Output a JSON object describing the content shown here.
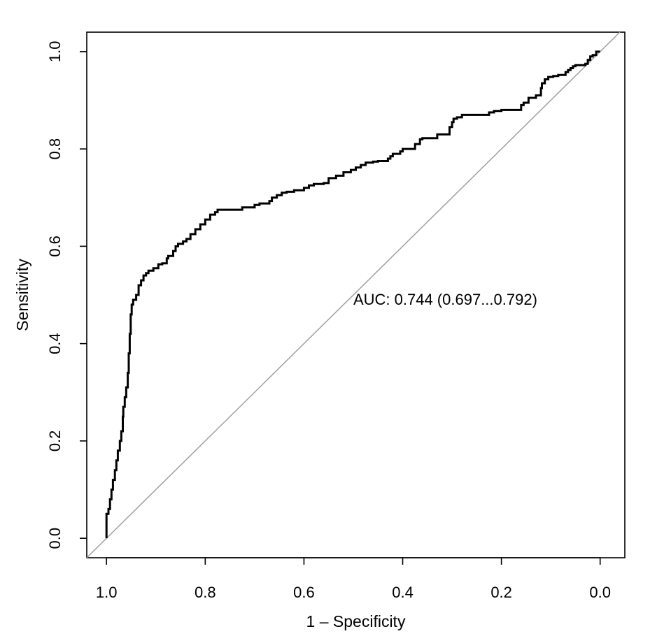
{
  "chart_data": {
    "type": "line",
    "title": "",
    "xlabel": "1 – Specificity",
    "ylabel": "Sensitivity",
    "x_axis": {
      "reversed": true,
      "ticks": [
        1.0,
        0.8,
        0.6,
        0.4,
        0.2,
        0.0
      ],
      "tick_labels": [
        "1.0",
        "0.8",
        "0.6",
        "0.4",
        "0.2",
        "0.0"
      ],
      "range": [
        1.04,
        -0.05
      ]
    },
    "y_axis": {
      "ticks": [
        0.0,
        0.2,
        0.4,
        0.6,
        0.8,
        1.0
      ],
      "tick_labels": [
        "0.0",
        "0.2",
        "0.4",
        "0.6",
        "0.8",
        "1.0"
      ],
      "range": [
        -0.04,
        1.04
      ]
    },
    "grid": false,
    "legend": "none",
    "annotation": {
      "text": "AUC: 0.744 (0.697...0.792)",
      "x": 0.5,
      "y": 0.48
    },
    "diagonal": {
      "from": [
        1.0,
        0.0
      ],
      "to": [
        0.0,
        1.0
      ],
      "color": "#a0a0a0"
    },
    "series": [
      {
        "color": "#000000",
        "points": [
          [
            1.0,
            0.0
          ],
          [
            1.0,
            0.04
          ],
          [
            0.996,
            0.05
          ],
          [
            0.993,
            0.06
          ],
          [
            0.99,
            0.08
          ],
          [
            0.987,
            0.1
          ],
          [
            0.983,
            0.12
          ],
          [
            0.98,
            0.14
          ],
          [
            0.977,
            0.16
          ],
          [
            0.973,
            0.18
          ],
          [
            0.97,
            0.2
          ],
          [
            0.967,
            0.22
          ],
          [
            0.966,
            0.25
          ],
          [
            0.963,
            0.27
          ],
          [
            0.96,
            0.29
          ],
          [
            0.957,
            0.31
          ],
          [
            0.955,
            0.34
          ],
          [
            0.953,
            0.38
          ],
          [
            0.951,
            0.42
          ],
          [
            0.949,
            0.46
          ],
          [
            0.946,
            0.48
          ],
          [
            0.94,
            0.49
          ],
          [
            0.935,
            0.5
          ],
          [
            0.93,
            0.52
          ],
          [
            0.925,
            0.53
          ],
          [
            0.92,
            0.54
          ],
          [
            0.915,
            0.545
          ],
          [
            0.905,
            0.55
          ],
          [
            0.895,
            0.555
          ],
          [
            0.887,
            0.563
          ],
          [
            0.878,
            0.565
          ],
          [
            0.875,
            0.575
          ],
          [
            0.865,
            0.58
          ],
          [
            0.86,
            0.59
          ],
          [
            0.855,
            0.6
          ],
          [
            0.845,
            0.605
          ],
          [
            0.838,
            0.61
          ],
          [
            0.83,
            0.615
          ],
          [
            0.82,
            0.625
          ],
          [
            0.81,
            0.635
          ],
          [
            0.8,
            0.645
          ],
          [
            0.79,
            0.655
          ],
          [
            0.78,
            0.665
          ],
          [
            0.775,
            0.67
          ],
          [
            0.76,
            0.675
          ],
          [
            0.725,
            0.675
          ],
          [
            0.715,
            0.68
          ],
          [
            0.7,
            0.68
          ],
          [
            0.69,
            0.685
          ],
          [
            0.67,
            0.688
          ],
          [
            0.665,
            0.693
          ],
          [
            0.655,
            0.7
          ],
          [
            0.645,
            0.705
          ],
          [
            0.635,
            0.71
          ],
          [
            0.62,
            0.712
          ],
          [
            0.6,
            0.715
          ],
          [
            0.59,
            0.72
          ],
          [
            0.58,
            0.725
          ],
          [
            0.56,
            0.728
          ],
          [
            0.55,
            0.73
          ],
          [
            0.535,
            0.74
          ],
          [
            0.52,
            0.745
          ],
          [
            0.505,
            0.752
          ],
          [
            0.495,
            0.757
          ],
          [
            0.485,
            0.762
          ],
          [
            0.475,
            0.767
          ],
          [
            0.46,
            0.772
          ],
          [
            0.45,
            0.774
          ],
          [
            0.43,
            0.775
          ],
          [
            0.425,
            0.78
          ],
          [
            0.42,
            0.785
          ],
          [
            0.405,
            0.79
          ],
          [
            0.4,
            0.795
          ],
          [
            0.39,
            0.8
          ],
          [
            0.375,
            0.8
          ],
          [
            0.365,
            0.81
          ],
          [
            0.36,
            0.82
          ],
          [
            0.33,
            0.822
          ],
          [
            0.32,
            0.83
          ],
          [
            0.305,
            0.83
          ],
          [
            0.3,
            0.845
          ],
          [
            0.297,
            0.855
          ],
          [
            0.29,
            0.862
          ],
          [
            0.28,
            0.865
          ],
          [
            0.265,
            0.87
          ],
          [
            0.225,
            0.87
          ],
          [
            0.215,
            0.875
          ],
          [
            0.2,
            0.878
          ],
          [
            0.18,
            0.88
          ],
          [
            0.16,
            0.88
          ],
          [
            0.155,
            0.89
          ],
          [
            0.145,
            0.895
          ],
          [
            0.13,
            0.905
          ],
          [
            0.12,
            0.91
          ],
          [
            0.118,
            0.925
          ],
          [
            0.112,
            0.935
          ],
          [
            0.105,
            0.943
          ],
          [
            0.095,
            0.948
          ],
          [
            0.085,
            0.95
          ],
          [
            0.07,
            0.952
          ],
          [
            0.065,
            0.958
          ],
          [
            0.06,
            0.962
          ],
          [
            0.055,
            0.966
          ],
          [
            0.05,
            0.97
          ],
          [
            0.03,
            0.972
          ],
          [
            0.025,
            0.975
          ],
          [
            0.02,
            0.983
          ],
          [
            0.015,
            0.99
          ],
          [
            0.008,
            0.993
          ],
          [
            0.003,
            1.0
          ],
          [
            0.0,
            1.0
          ]
        ]
      }
    ]
  }
}
